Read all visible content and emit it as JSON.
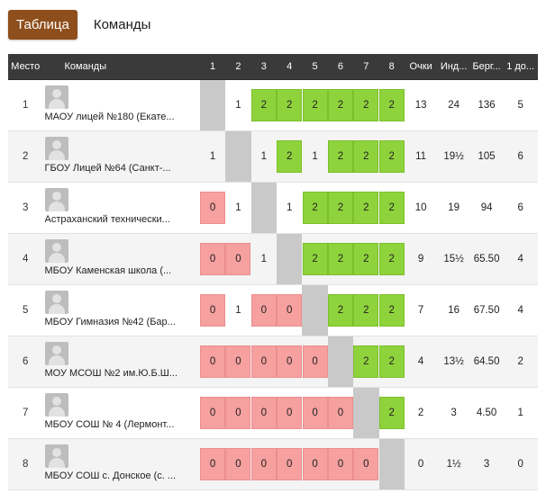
{
  "tabs": {
    "active": "Таблица",
    "other": "Команды"
  },
  "table": {
    "headers": {
      "place": "Место",
      "team": "Команды",
      "rounds": [
        "1",
        "2",
        "3",
        "4",
        "5",
        "6",
        "7",
        "8"
      ],
      "points": "Очки",
      "ind": "Инд...",
      "berg": "Берг...",
      "first": "1 до..."
    },
    "rows": [
      {
        "place": "1",
        "team": "МАОУ лицей №180 (Екате...",
        "scores": [
          "",
          "1",
          "2",
          "2",
          "2",
          "2",
          "2",
          "2"
        ],
        "points": "13",
        "ind": "24",
        "berg": "136",
        "first": "5"
      },
      {
        "place": "2",
        "team": "ГБОУ Лицей №64 (Санкт-...",
        "scores": [
          "1",
          "",
          "1",
          "2",
          "1",
          "2",
          "2",
          "2"
        ],
        "points": "11",
        "ind": "19½",
        "berg": "105",
        "first": "6"
      },
      {
        "place": "3",
        "team": "Астраханский технически...",
        "scores": [
          "0",
          "1",
          "",
          "1",
          "2",
          "2",
          "2",
          "2"
        ],
        "points": "10",
        "ind": "19",
        "berg": "94",
        "first": "6"
      },
      {
        "place": "4",
        "team": "МБОУ Каменская школа (...",
        "scores": [
          "0",
          "0",
          "1",
          "",
          "2",
          "2",
          "2",
          "2"
        ],
        "points": "9",
        "ind": "15½",
        "berg": "65.50",
        "first": "4"
      },
      {
        "place": "5",
        "team": "МБОУ Гимназия №42 (Бар...",
        "scores": [
          "0",
          "1",
          "0",
          "0",
          "",
          "2",
          "2",
          "2"
        ],
        "points": "7",
        "ind": "16",
        "berg": "67.50",
        "first": "4"
      },
      {
        "place": "6",
        "team": "МОУ МСОШ №2 им.Ю.Б.Ш...",
        "scores": [
          "0",
          "0",
          "0",
          "0",
          "0",
          "",
          "2",
          "2"
        ],
        "points": "4",
        "ind": "13½",
        "berg": "64.50",
        "first": "2"
      },
      {
        "place": "7",
        "team": "МБОУ СОШ № 4 (Лермонт...",
        "scores": [
          "0",
          "0",
          "0",
          "0",
          "0",
          "0",
          "",
          "2"
        ],
        "points": "2",
        "ind": "3",
        "berg": "4.50",
        "first": "1"
      },
      {
        "place": "8",
        "team": "МБОУ СОШ с. Донское (с. ...",
        "scores": [
          "0",
          "0",
          "0",
          "0",
          "0",
          "0",
          "0",
          ""
        ],
        "points": "0",
        "ind": "1½",
        "berg": "3",
        "first": "0"
      }
    ]
  },
  "colors": {
    "win": "#8fd33c",
    "loss": "#f6a0a0",
    "self": "#c9c9c9",
    "header": "#3a3a3a",
    "active_tab": "#8f4f1c"
  }
}
